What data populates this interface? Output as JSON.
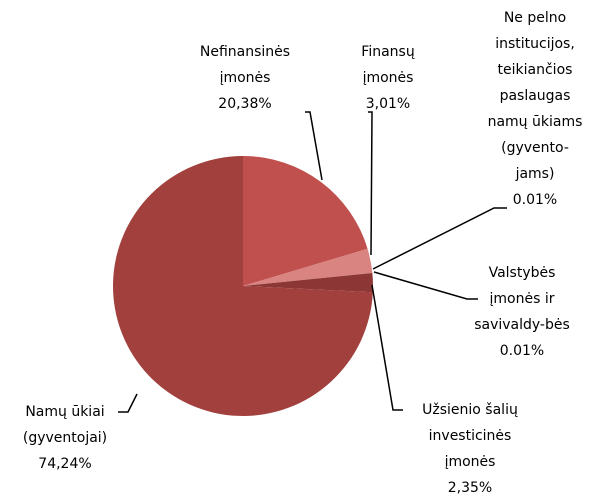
{
  "chart_data": {
    "type": "pie",
    "categories": [
      [
        "Nefinansinės",
        "įmonės"
      ],
      [
        "Finansų",
        "įmonės"
      ],
      [
        "Ne pelno",
        "institucijos,",
        "teikiančios",
        "paslaugas",
        "namų ūkiams",
        "(gyvento-",
        "jams)"
      ],
      [
        "Valstybės",
        "įmonės ir",
        "savivaldy-bės"
      ],
      [
        "Užsienio šalių",
        "investicinės",
        "įmonės"
      ],
      [
        "Namų ūkiai",
        "(gyventojai)"
      ]
    ],
    "values": [
      20.38,
      3.01,
      0.01,
      0.01,
      2.35,
      74.24
    ],
    "value_labels": [
      "20,38%",
      "3,01%",
      "0.01%",
      "0.01%",
      "2,35%",
      "74,24%"
    ],
    "colors": [
      "#c0504d",
      "#d98481",
      "#b84a47",
      "#a94341",
      "#8c3735",
      "#a1403d"
    ]
  }
}
